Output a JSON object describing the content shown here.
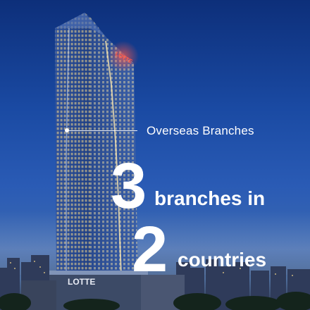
{
  "callout": {
    "label": "Overseas Branches"
  },
  "stats": {
    "branch_count": "3",
    "branch_text": "branches in",
    "country_count": "2",
    "country_text": "countries"
  },
  "building": {
    "sign_text": "LOTTE",
    "podium_sign": "LOTTE"
  },
  "colors": {
    "sky_top": "#0d2f7a",
    "sky_mid": "#2a5bb5",
    "tower_glass": "#1b3f86",
    "window_light": "#f5d98a",
    "sign_red": "#ff4a3a",
    "text": "#ffffff"
  }
}
